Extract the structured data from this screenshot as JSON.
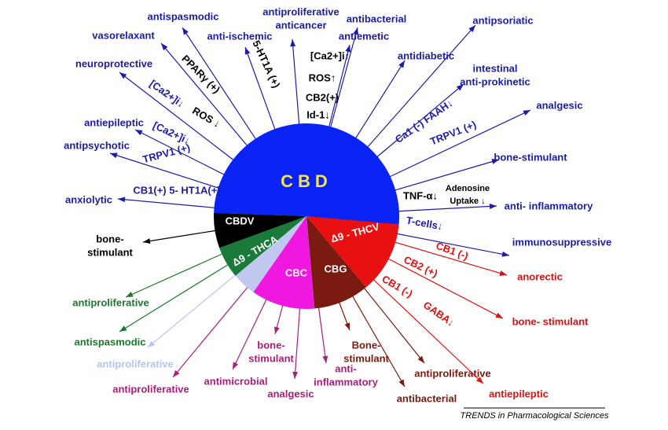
{
  "center": "CBD",
  "compounds": [
    "CBDV",
    "Δ9 - THCA",
    "CBC",
    "CBG",
    "Δ9 - THCV"
  ],
  "effects": [
    {
      "label": [
        "antiproliferative",
        "anticancer"
      ]
    },
    {
      "label": [
        "antispasmodic"
      ]
    },
    {
      "label": [
        "vasorelaxant"
      ]
    },
    {
      "label": [
        "anti-ischemic"
      ]
    },
    {
      "label": [
        "neuroprotective"
      ]
    },
    {
      "label": [
        "antiepileptic"
      ]
    },
    {
      "label": [
        "antipsychotic"
      ]
    },
    {
      "label": [
        "anxiolytic"
      ]
    },
    {
      "label": [
        "antibacterial"
      ]
    },
    {
      "label": [
        "antiemetic"
      ]
    },
    {
      "label": [
        "antipsoriatic"
      ]
    },
    {
      "label": [
        "antidiabetic"
      ]
    },
    {
      "label": [
        "intestinal",
        "anti-prokinetic"
      ]
    },
    {
      "label": [
        "analgesic"
      ]
    },
    {
      "label": [
        "bone-stimulant"
      ]
    },
    {
      "label": [
        "anti- inflammatory"
      ]
    },
    {
      "label": [
        "immunosuppressive"
      ]
    },
    {
      "label": [
        "anorectic"
      ]
    },
    {
      "label": [
        "bone- stimulant"
      ]
    },
    {
      "label": [
        "antiepileptic"
      ]
    },
    {
      "label": [
        "antiproliferative"
      ]
    },
    {
      "label": [
        "antibacterial"
      ]
    },
    {
      "label": [
        "Bone-",
        "stimulant"
      ]
    },
    {
      "label": [
        "anti-",
        "inflammatory"
      ]
    },
    {
      "label": [
        "analgesic"
      ]
    },
    {
      "label": [
        "bone-",
        "stimulant"
      ]
    },
    {
      "label": [
        "antimicrobial"
      ]
    },
    {
      "label": [
        "antiproliferative"
      ]
    },
    {
      "label": [
        "antiproliferative"
      ]
    },
    {
      "label": [
        "antispasmodic"
      ]
    },
    {
      "label": [
        "antiproliferative"
      ]
    },
    {
      "label": [
        "bone-",
        "stimulant"
      ]
    }
  ],
  "mediators": [
    "PPARγ (+)",
    "5-HT1A (+)",
    "[Ca2+]i↓",
    "ROS ↓",
    "[Ca2+]i↓",
    "TRPV1 (+)",
    "CB1(+) 5- HT1A(+)",
    "[Ca2+]i↑",
    "ROS↑",
    "CB2(+)",
    "Id-1↓",
    "Ca1 (-) FAAH↓",
    "TRPV1 (+)",
    "TNF-α↓",
    "Adenosine",
    "Uptake ↓",
    "T-cells↓",
    "CB1 (-)",
    "CB2 (+)",
    "CB1 (-)",
    "GABA↓"
  ],
  "credit": "TRENDS in Pharmacological Sciences"
}
